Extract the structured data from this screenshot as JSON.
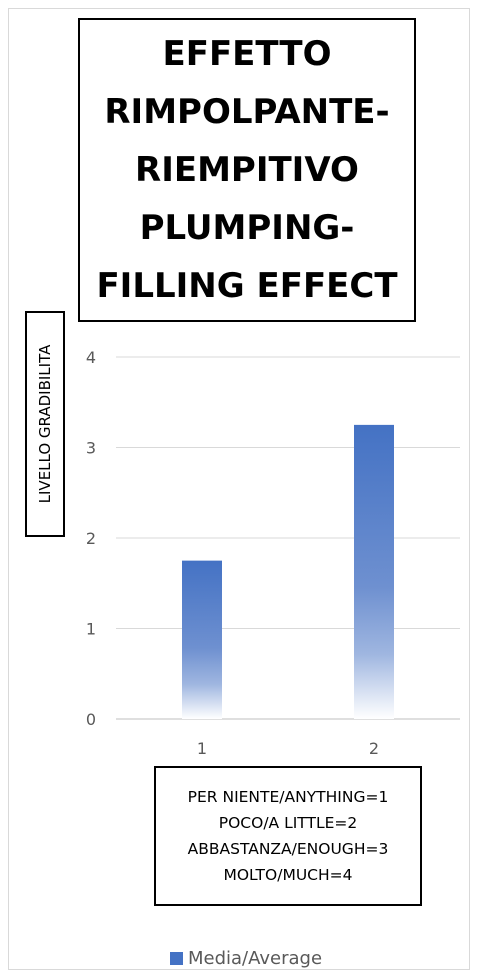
{
  "chart_data": {
    "type": "bar",
    "title_lines": [
      "EFFETTO",
      "RIMPOLPANTE-",
      "RIEMPITIVO",
      "PLUMPING-",
      "FILLING EFFECT"
    ],
    "ylabel": "LIVELLO GRADIBILITA",
    "categories": [
      "1",
      "2"
    ],
    "yticks": [
      "0",
      "1",
      "2",
      "3",
      "4"
    ],
    "ylim": [
      0,
      4
    ],
    "grid": true,
    "series": [
      {
        "name": "Media/Average",
        "values": [
          1.75,
          3.25
        ],
        "color": "#4472c4"
      }
    ],
    "legend_position": "bottom",
    "annotation_lines": [
      "PER NIENTE/ANYTHING=1",
      "POCO/A LITTLE=2",
      "ABBASTANZA/ENOUGH=3",
      "MOLTO/MUCH=4"
    ]
  }
}
